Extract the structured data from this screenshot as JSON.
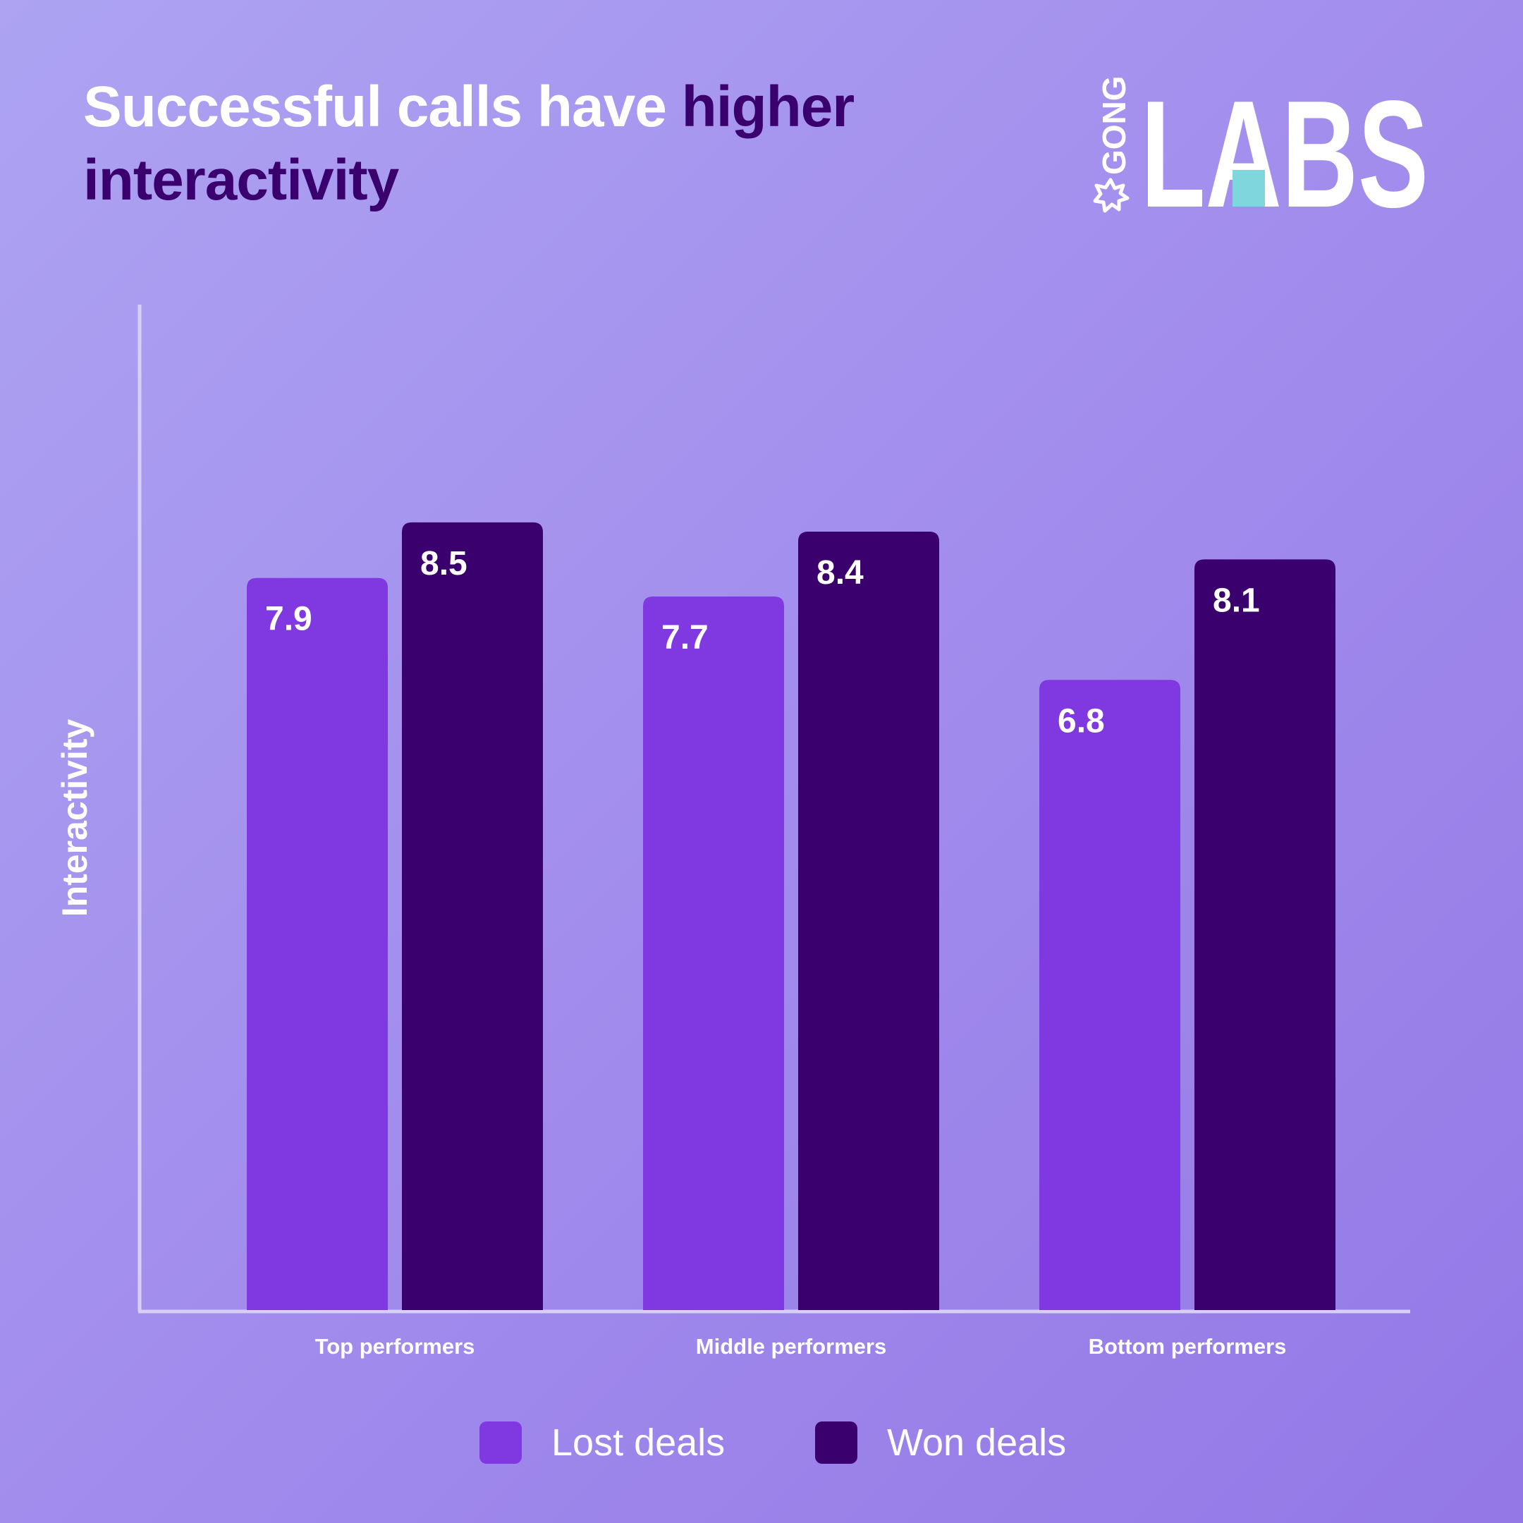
{
  "title": {
    "part1": "Successful calls have ",
    "highlight": "higher interactivity"
  },
  "logo": {
    "small_text": "GONG",
    "big_text": "LABS"
  },
  "colors": {
    "lost": "#8038e0",
    "won": "#3a006d",
    "highlight": "#3a006d",
    "logo_accent": "#7fd6dc"
  },
  "chart_data": {
    "type": "bar",
    "categories": [
      "Top performers",
      "Middle performers",
      "Bottom performers"
    ],
    "series": [
      {
        "name": "Lost deals",
        "values": [
          7.9,
          7.7,
          6.8
        ],
        "color": "#8038e0"
      },
      {
        "name": "Won deals",
        "values": [
          8.5,
          8.4,
          8.1
        ],
        "color": "#3a006d"
      }
    ],
    "value_labels": [
      [
        "7.9",
        "7.7",
        "6.8"
      ],
      [
        "8.5",
        "8.4",
        "8.1"
      ]
    ],
    "xlabel": "",
    "ylabel": "Interactivity",
    "ylim": [
      0,
      10.85
    ],
    "grid": false,
    "legend": "bottom-center"
  }
}
